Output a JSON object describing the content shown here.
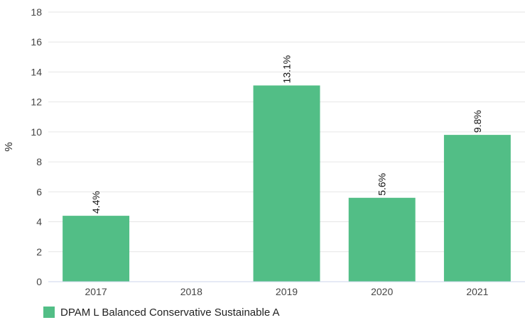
{
  "chart_data": {
    "type": "bar",
    "categories": [
      "2017",
      "2018",
      "2019",
      "2020",
      "2021"
    ],
    "series": [
      {
        "name": "DPAM L Balanced Conservative Sustainable A",
        "values": [
          4.4,
          null,
          13.1,
          5.6,
          9.8
        ],
        "labels": [
          "4.4%",
          "",
          "13.1%",
          "5.6%",
          "9.8%"
        ]
      }
    ],
    "ylabel": "%",
    "xlabel": "",
    "ylim": [
      0,
      18
    ],
    "yticks": [
      0,
      2,
      4,
      6,
      8,
      10,
      12,
      14,
      16,
      18
    ],
    "grid": true,
    "legend_position": "bottom-left",
    "colors": {
      "bar": "#52be86",
      "grid": "#e6e6e6",
      "axis": "#ccd6eb"
    }
  },
  "legend": {
    "label": "DPAM L Balanced Conservative Sustainable A"
  }
}
